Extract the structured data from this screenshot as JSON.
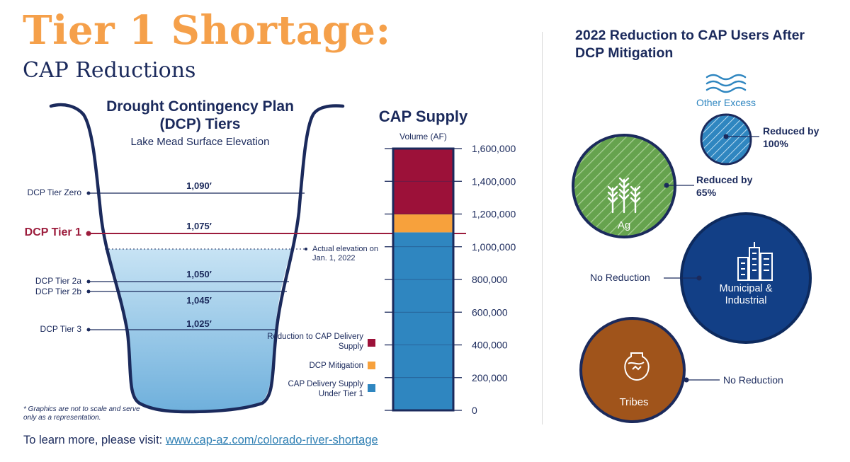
{
  "header": {
    "title": "Tier 1 Shortage:",
    "subtitle": "CAP Reductions"
  },
  "dcp_panel": {
    "heading": "Drought Contingency Plan (DCP) Tiers",
    "subheading": "Lake Mead Surface Elevation",
    "tiers": [
      {
        "label": "DCP Tier Zero",
        "elevation": "1,090′"
      },
      {
        "label": "DCP Tier 1",
        "elevation": "1,075′"
      },
      {
        "label": "DCP Tier 2a",
        "elevation": "1,050′"
      },
      {
        "label": "DCP Tier 2b",
        "elevation": "1,045′"
      },
      {
        "label": "DCP Tier 3",
        "elevation": "1,025′"
      }
    ],
    "actual_elevation_label": "Actual elevation on Jan. 1, 2022",
    "footnote": "* Graphics are not to scale and serve only as a representation."
  },
  "chart_data": {
    "type": "bar",
    "title": "CAP Supply",
    "ylabel": "Volume (AF)",
    "ylim": [
      0,
      1600000
    ],
    "y_ticks": [
      "0",
      "200,000",
      "400,000",
      "600,000",
      "800,000",
      "1,000,000",
      "1,200,000",
      "1,400,000",
      "1,600,000"
    ],
    "categories": [
      "CAP Supply"
    ],
    "series": [
      {
        "name": "CAP Delivery Supply Under Tier 1",
        "values": [
          1088000
        ],
        "color": "#2f86c0"
      },
      {
        "name": "DCP Mitigation",
        "values": [
          110000
        ],
        "color": "#f7a13c"
      },
      {
        "name": "Reduction to CAP Delivery Supply",
        "values": [
          402000
        ],
        "color": "#9c1139"
      }
    ]
  },
  "legend": {
    "reduction": "Reduction to CAP Delivery Supply",
    "mitigation": "DCP Mitigation",
    "delivery": "CAP Delivery Supply Under Tier 1"
  },
  "right_panel": {
    "heading": "2022 Reduction to CAP Users After DCP Mitigation",
    "users": [
      {
        "name": "Other Excess",
        "reduction": "Reduced by 100%",
        "color": "#2f86c0"
      },
      {
        "name": "Ag",
        "reduction": "Reduced by 65%",
        "color": "#66a34e"
      },
      {
        "name": "Municipal & Industrial",
        "reduction": "No Reduction",
        "color": "#123f86"
      },
      {
        "name": "Tribes",
        "reduction": "No Reduction",
        "color": "#a0541b"
      }
    ]
  },
  "footer": {
    "prefix": "To learn more, please visit: ",
    "link": "www.cap-az.com/colorado-river-shortage"
  },
  "colors": {
    "orange": "#f5a04a",
    "navy": "#1b2a5c",
    "tier1_red": "#9c1c3c",
    "water_light": "#bcdcf0"
  }
}
